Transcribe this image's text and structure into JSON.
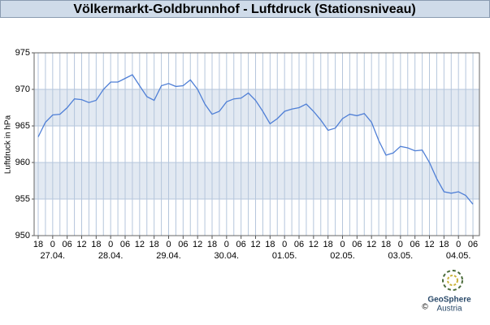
{
  "chart_data": {
    "type": "line",
    "title": "Völkermarkt-Goldbrunnhof - Luftdruck (Stationsniveau)",
    "y_label": "Luftdruck in hPa",
    "categories": [
      "18",
      null,
      "0",
      null,
      "06",
      null,
      "12",
      null,
      "18",
      null,
      "0",
      null,
      "06",
      null,
      "12",
      null,
      "18",
      null,
      "0",
      null,
      "06",
      null,
      "12",
      null,
      "18",
      null,
      "0",
      null,
      "06",
      null,
      "12",
      null,
      "18",
      null,
      "0",
      null,
      "06",
      null,
      "12",
      null,
      "18",
      null,
      "0",
      null,
      "06",
      null,
      "12",
      null,
      "18",
      null,
      "0",
      null,
      "06",
      null,
      "12",
      null,
      "18",
      null,
      "0",
      null,
      "06"
    ],
    "x_dates": [
      null,
      null,
      "27.04.",
      null,
      null,
      null,
      null,
      null,
      null,
      null,
      "28.04.",
      null,
      null,
      null,
      null,
      null,
      null,
      null,
      "29.04.",
      null,
      null,
      null,
      null,
      null,
      null,
      null,
      "30.04.",
      null,
      null,
      null,
      null,
      null,
      null,
      null,
      "01.05.",
      null,
      null,
      null,
      null,
      null,
      null,
      null,
      "02.05.",
      null,
      null,
      null,
      null,
      null,
      null,
      null,
      "03.05.",
      null,
      null,
      null,
      null,
      null,
      null,
      null,
      "04.05.",
      null,
      null
    ],
    "series": [
      {
        "name": "Luftdruck",
        "color": "#4f7fd6",
        "values": [
          963.5,
          965.5,
          966.5,
          966.6,
          967.5,
          968.7,
          968.6,
          968.2,
          968.5,
          970,
          971,
          971,
          971.5,
          972,
          970.5,
          969,
          968.5,
          970.5,
          970.8,
          970.4,
          970.5,
          971.3,
          970,
          968,
          966.6,
          967,
          968.3,
          968.7,
          968.8,
          969.5,
          968.5,
          967,
          965.3,
          966,
          967,
          967.3,
          967.5,
          968,
          967,
          965.8,
          964.4,
          964.7,
          966,
          966.6,
          966.4,
          966.7,
          965.5,
          963,
          961,
          961.3,
          962.2,
          962,
          961.6,
          961.7,
          960,
          957.8,
          956,
          955.8,
          956,
          955.5,
          954.3
        ]
      }
    ],
    "ylim": [
      950,
      975
    ],
    "yticks": [
      950,
      955,
      960,
      965,
      970,
      975
    ],
    "grid": true
  },
  "logo": {
    "name": "GeoSphere",
    "sub": "Austria",
    "copyright": "©"
  }
}
